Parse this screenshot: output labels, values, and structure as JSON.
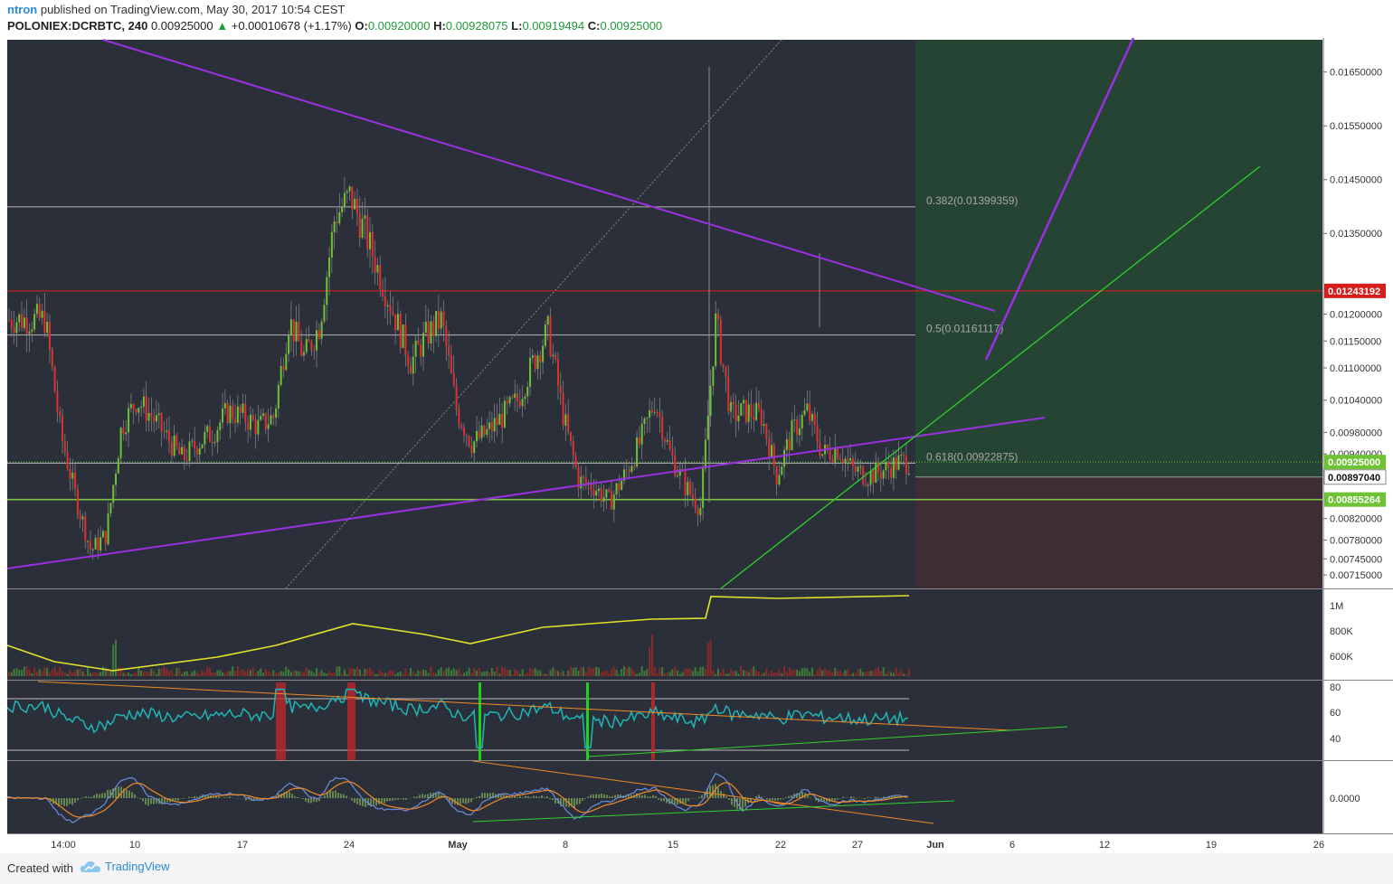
{
  "header": {
    "publisher": "ntron",
    "published_text": "published on TradingView.com, May 30, 2017 10:54 CEST",
    "symbol": "POLONIEX:DCRBTC, 240",
    "last": "0.00925000",
    "change_arrow": "▲",
    "change": "+0.00010678 (+1.17%)",
    "open_label": "O:",
    "open": "0.00920000",
    "high_label": "H:",
    "high": "0.00928075",
    "low_label": "L:",
    "low": "0.00919494",
    "close_label": "C:",
    "close": "0.00925000"
  },
  "footer": {
    "created_with": "Created with",
    "brand": "TradingView"
  },
  "colors": {
    "pane_bg": "#2b2f39",
    "candle_up": "#6ec234",
    "candle_down": "#e03030",
    "triangle": "#9b30e0",
    "trend_green": "#2ed12e",
    "resistance_red": "#d81b1b",
    "support_green": "#7cc243",
    "obv": "#e2e22a",
    "rsi": "#1fb5b5",
    "macd": "#6a8ee0",
    "signal": "#f08a24",
    "hist": "#8fbf60",
    "target_zone": "#254433",
    "stop_zone": "#3f2d35"
  },
  "chart_data": {
    "type": "line",
    "title": "",
    "price_axis": {
      "ticks": [
        "0.01650000",
        "0.01550000",
        "0.01450000",
        "0.01350000",
        "0.01200000",
        "0.01150000",
        "0.01100000",
        "0.01040000",
        "0.00980000",
        "0.00940000",
        "0.00820000",
        "0.00780000",
        "0.00745000",
        "0.00715000"
      ],
      "ylim": [
        0.0069,
        0.0171
      ]
    },
    "price_labels": [
      {
        "value": "0.01243192",
        "kind": "resistance"
      },
      {
        "value": "0.00925000",
        "kind": "last"
      },
      {
        "value": "0.00897040",
        "kind": "entry"
      },
      {
        "value": "0.00855264",
        "kind": "support"
      }
    ],
    "fib_levels": [
      {
        "label": "0.382(0.01399359)",
        "value": 0.01399359
      },
      {
        "label": "0.5(0.01161117)",
        "value": 0.01161117
      },
      {
        "label": "0.618(0.00922875)",
        "value": 0.00922875
      }
    ],
    "time_axis": [
      "14:00",
      "10",
      "17",
      "24",
      "May",
      "8",
      "15",
      "22",
      "27",
      "Jun",
      "6",
      "12",
      "19",
      "26"
    ],
    "volume_axis": [
      "1M",
      "800K",
      "600K"
    ],
    "rsi_axis": [
      "80",
      "60",
      "40"
    ],
    "macd_axis": [
      "0.0000"
    ],
    "price_series": [
      {
        "date": "2017-04-04",
        "price": 0.0119
      },
      {
        "date": "2017-04-05",
        "price": 0.0098
      },
      {
        "date": "2017-04-06",
        "price": 0.0086
      },
      {
        "date": "2017-04-07",
        "price": 0.0076
      },
      {
        "date": "2017-04-08",
        "price": 0.0079
      },
      {
        "date": "2017-04-09",
        "price": 0.0099
      },
      {
        "date": "2017-04-10",
        "price": 0.0104
      },
      {
        "date": "2017-04-11",
        "price": 0.0101
      },
      {
        "date": "2017-04-12",
        "price": 0.0097
      },
      {
        "date": "2017-04-13",
        "price": 0.0093
      },
      {
        "date": "2017-04-14",
        "price": 0.0096
      },
      {
        "date": "2017-04-15",
        "price": 0.0098
      },
      {
        "date": "2017-04-16",
        "price": 0.0102
      },
      {
        "date": "2017-04-17",
        "price": 0.0101
      },
      {
        "date": "2017-04-18",
        "price": 0.0099
      },
      {
        "date": "2017-04-19",
        "price": 0.0101
      },
      {
        "date": "2017-04-20",
        "price": 0.0119
      },
      {
        "date": "2017-04-21",
        "price": 0.0112
      },
      {
        "date": "2017-04-22",
        "price": 0.0118
      },
      {
        "date": "2017-04-23",
        "price": 0.0138
      },
      {
        "date": "2017-04-24",
        "price": 0.0142
      },
      {
        "date": "2017-04-25",
        "price": 0.0135
      },
      {
        "date": "2017-04-26",
        "price": 0.0127
      },
      {
        "date": "2017-04-27",
        "price": 0.0119
      },
      {
        "date": "2017-04-28",
        "price": 0.0111
      },
      {
        "date": "2017-04-29",
        "price": 0.0116
      },
      {
        "date": "2017-04-30",
        "price": 0.0119
      },
      {
        "date": "2017-05-01",
        "price": 0.0102
      },
      {
        "date": "2017-05-02",
        "price": 0.0096
      },
      {
        "date": "2017-05-03",
        "price": 0.0098
      },
      {
        "date": "2017-05-04",
        "price": 0.0101
      },
      {
        "date": "2017-05-05",
        "price": 0.0104
      },
      {
        "date": "2017-05-06",
        "price": 0.0111
      },
      {
        "date": "2017-05-07",
        "price": 0.0117
      },
      {
        "date": "2017-05-08",
        "price": 0.0101
      },
      {
        "date": "2017-05-09",
        "price": 0.0089
      },
      {
        "date": "2017-05-10",
        "price": 0.0088
      },
      {
        "date": "2017-05-11",
        "price": 0.0085
      },
      {
        "date": "2017-05-12",
        "price": 0.009
      },
      {
        "date": "2017-05-13",
        "price": 0.0096
      },
      {
        "date": "2017-05-14",
        "price": 0.0104
      },
      {
        "date": "2017-05-15",
        "price": 0.0094
      },
      {
        "date": "2017-05-16",
        "price": 0.0088
      },
      {
        "date": "2017-05-17",
        "price": 0.0084
      },
      {
        "date": "2017-05-18",
        "price": 0.0119
      },
      {
        "date": "2017-05-19",
        "price": 0.0101
      },
      {
        "date": "2017-05-20",
        "price": 0.0102
      },
      {
        "date": "2017-05-21",
        "price": 0.0101
      },
      {
        "date": "2017-05-22",
        "price": 0.009
      },
      {
        "date": "2017-05-23",
        "price": 0.0098
      },
      {
        "date": "2017-05-24",
        "price": 0.0102
      },
      {
        "date": "2017-05-25",
        "price": 0.0094
      },
      {
        "date": "2017-05-26",
        "price": 0.0095
      },
      {
        "date": "2017-05-27",
        "price": 0.0091
      },
      {
        "date": "2017-05-28",
        "price": 0.009
      },
      {
        "date": "2017-05-29",
        "price": 0.0091
      },
      {
        "date": "2017-05-30",
        "price": 0.00925
      }
    ]
  }
}
